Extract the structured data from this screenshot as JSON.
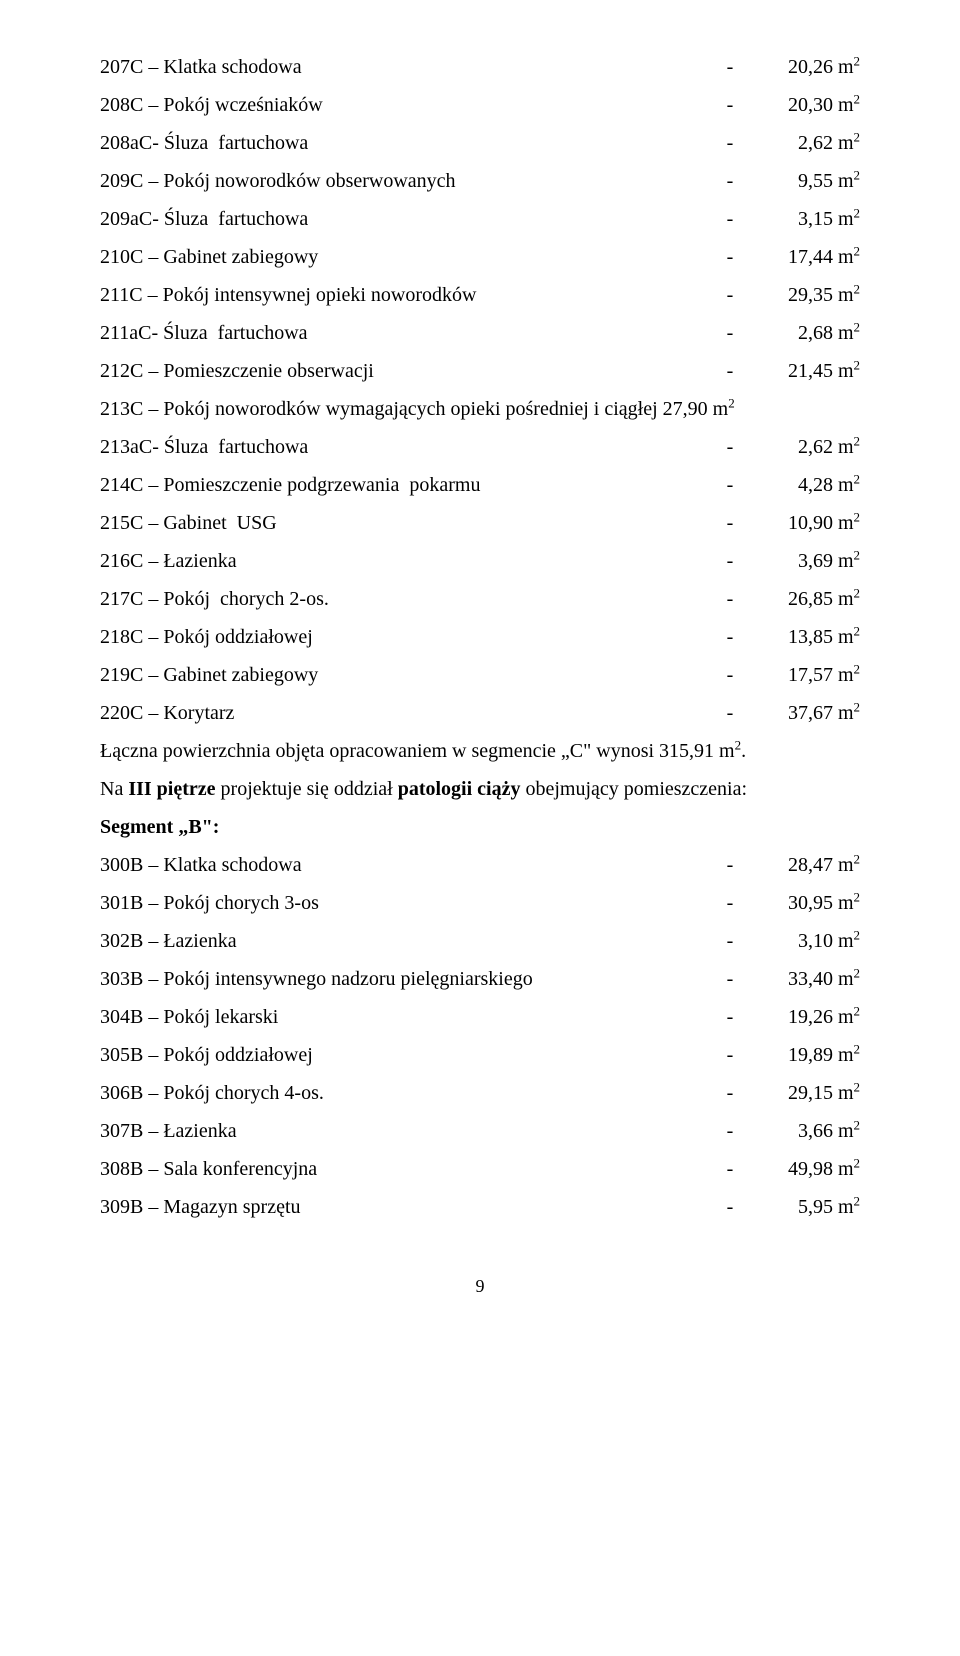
{
  "font_family": "Times New Roman",
  "text_color": "#000000",
  "background_color": "#ffffff",
  "page_number": "9",
  "rows1": [
    {
      "label": "207C – Klatka schodowa",
      "value": "20,26 m"
    },
    {
      "label": "208C – Pokój wcześniaków",
      "value": "20,30 m"
    },
    {
      "label": "208aC- Śluza  fartuchowa",
      "value": "2,62 m"
    },
    {
      "label": "209C – Pokój noworodków obserwowanych",
      "value": "9,55 m"
    },
    {
      "label": "209aC- Śluza  fartuchowa",
      "value": "3,15 m"
    },
    {
      "label": "210C – Gabinet zabiegowy",
      "value": "17,44 m"
    },
    {
      "label": "211C – Pokój intensywnej opieki noworodków",
      "value": "29,35 m"
    },
    {
      "label": "211aC- Śluza  fartuchowa",
      "value": "2,68 m"
    },
    {
      "label": "212C – Pomieszczenie obserwacji",
      "value": "21,45 m"
    }
  ],
  "row_213c_label": "213C – Pokój noworodków wymagających opieki pośredniej i ciągłej 27,90 m",
  "rows2": [
    {
      "label": "213aC- Śluza  fartuchowa",
      "value": "2,62 m"
    },
    {
      "label": "214C – Pomieszczenie podgrzewania  pokarmu",
      "value": "4,28 m"
    },
    {
      "label": "215C – Gabinet  USG",
      "value": "10,90 m"
    },
    {
      "label": "216C – Łazienka",
      "value": "3,69 m"
    },
    {
      "label": "217C – Pokój  chorych 2-os.",
      "value": "26,85 m"
    },
    {
      "label": "218C – Pokój oddziałowej",
      "value": "13,85 m"
    },
    {
      "label": "219C – Gabinet zabiegowy",
      "value": "17,57 m"
    },
    {
      "label": "220C – Korytarz",
      "value": "37,67 m"
    }
  ],
  "summary_c_pre": "Łączna powierzchnia objęta opracowaniem w segmencie „C\" wynosi 315,91 m",
  "summary_c_post": ".",
  "intro_pre": "Na ",
  "intro_b1": "III piętrze",
  "intro_mid": "  projektuje się oddział ",
  "intro_b2": "patologii ciąży",
  "intro_post": " obejmujący pomieszczenia:",
  "segment_b_label": "Segment „B\":",
  "rows3": [
    {
      "label": "300B – Klatka schodowa",
      "value": "28,47 m"
    },
    {
      "label": "301B – Pokój chorych 3-os",
      "value": "30,95 m"
    },
    {
      "label": "302B – Łazienka",
      "value": "3,10 m"
    },
    {
      "label": "303B – Pokój intensywnego nadzoru pielęgniarskiego",
      "value": "33,40 m"
    },
    {
      "label": "304B – Pokój lekarski",
      "value": "19,26 m"
    },
    {
      "label": "305B – Pokój oddziałowej",
      "value": "19,89 m"
    },
    {
      "label": "306B – Pokój chorych 4-os.",
      "value": "29,15 m"
    },
    {
      "label": "307B – Łazienka",
      "value": "3,66 m"
    },
    {
      "label": "308B – Sala konferencyjna",
      "value": "49,98 m"
    },
    {
      "label": "309B – Magazyn sprzętu",
      "value": "5,95 m"
    }
  ]
}
